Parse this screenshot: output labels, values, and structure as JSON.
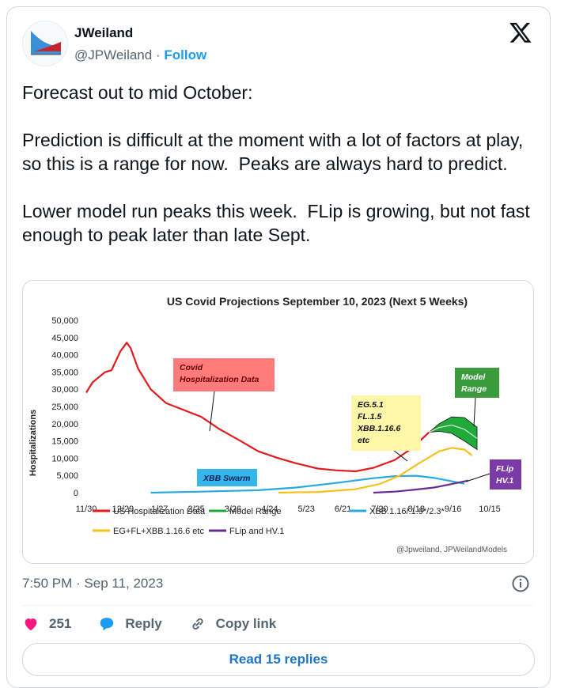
{
  "author": {
    "name": "JWeiland",
    "handle": "@JPWeiland",
    "separator": "·",
    "follow_label": "Follow"
  },
  "tweet": {
    "text": "Forecast out to mid October:\n\nPrediction is difficult at the moment with a lot of factors at play, so this is a range for now.  Peaks are always hard to predict.\n\nLower model run peaks this week.  FLip is growing, but not fast enough to peak later than late Sept."
  },
  "timestamp": "7:50 PM · Sep 11, 2023",
  "actions": {
    "likes": "251",
    "reply": "Reply",
    "copy_link": "Copy link"
  },
  "read_replies": "Read 15 replies",
  "colors": {
    "accent": "#1d9bf0",
    "like": "#f91880",
    "us": "#e41a1c",
    "model": "#1faa3a",
    "xbb": "#28a9e0",
    "eg": "#f5c21b",
    "flip": "#6a2c91"
  },
  "chart_data": {
    "type": "line",
    "title": "US Covid Projections September 10, 2023 (Next 5 Weeks)",
    "ylabel": "Hospitalizations",
    "ylim": [
      0,
      50000
    ],
    "ytick_labels": [
      "0",
      "5,000",
      "10,000",
      "15,000",
      "20,000",
      "25,000",
      "30,000",
      "35,000",
      "40,000",
      "45,000",
      "50,000"
    ],
    "xlim": [
      "2022-11-30",
      "2023-10-15"
    ],
    "xtick_labels": [
      "11/30",
      "12/29",
      "1/27",
      "2/25",
      "3/26",
      "4/24",
      "5/23",
      "6/21",
      "7/20",
      "8/18",
      "9/16",
      "10/15"
    ],
    "xtick_dates": [
      "2022-11-30",
      "2022-12-29",
      "2023-01-27",
      "2023-02-25",
      "2023-03-26",
      "2023-04-24",
      "2023-05-23",
      "2023-06-21",
      "2023-07-20",
      "2023-08-18",
      "2023-09-16",
      "2023-10-15"
    ],
    "series": [
      {
        "name": "US Hospitalization Data",
        "color": "#e41a1c",
        "x": [
          "2022-11-30",
          "2022-12-05",
          "2022-12-15",
          "2022-12-20",
          "2022-12-27",
          "2023-01-01",
          "2023-01-04",
          "2023-01-10",
          "2023-01-20",
          "2023-02-01",
          "2023-02-15",
          "2023-03-01",
          "2023-03-15",
          "2023-04-01",
          "2023-04-15",
          "2023-05-01",
          "2023-05-15",
          "2023-06-01",
          "2023-06-15",
          "2023-07-01",
          "2023-07-15",
          "2023-08-01",
          "2023-08-15",
          "2023-08-28"
        ],
        "y": [
          29000,
          32000,
          35000,
          35500,
          41000,
          43500,
          42000,
          36000,
          30000,
          26000,
          24000,
          22000,
          18500,
          15000,
          12000,
          10000,
          8500,
          7000,
          6500,
          6200,
          7200,
          9500,
          13000,
          17500
        ]
      },
      {
        "name": "Model Range",
        "color": "#1faa3a",
        "x": [
          "2023-08-28",
          "2023-09-05",
          "2023-09-15",
          "2023-09-25",
          "2023-10-05"
        ],
        "upper": [
          17500,
          20000,
          22000,
          21800,
          19000
        ],
        "lower": [
          17500,
          17800,
          17200,
          15000,
          12500
        ]
      },
      {
        "name": "XBB.1.16/.1.9*/2.3*",
        "color": "#28a9e0",
        "x": [
          "2023-01-20",
          "2023-03-01",
          "2023-04-15",
          "2023-05-15",
          "2023-06-15",
          "2023-07-15",
          "2023-08-01",
          "2023-08-18",
          "2023-09-01",
          "2023-09-15",
          "2023-09-25"
        ],
        "y": [
          0,
          300,
          700,
          1500,
          2800,
          4200,
          4800,
          4900,
          4300,
          3300,
          2600
        ]
      },
      {
        "name": "EG+FL+XBB.1.16.6 etc",
        "color": "#f5c21b",
        "x": [
          "2023-05-01",
          "2023-06-01",
          "2023-07-01",
          "2023-07-20",
          "2023-08-05",
          "2023-08-20",
          "2023-09-05",
          "2023-09-15",
          "2023-09-25",
          "2023-10-01"
        ],
        "y": [
          0,
          200,
          1000,
          2500,
          5000,
          8500,
          12000,
          13000,
          12500,
          10800
        ]
      },
      {
        "name": "FLip and HV.1",
        "color": "#6a2c91",
        "x": [
          "2023-07-15",
          "2023-08-01",
          "2023-08-15",
          "2023-09-01",
          "2023-09-15",
          "2023-09-28"
        ],
        "y": [
          0,
          300,
          800,
          1500,
          2500,
          3500
        ]
      }
    ],
    "annotations": [
      {
        "label": "Covid Hospitalization Data",
        "lines": [
          "Covid",
          "Hospitalization Data"
        ]
      },
      {
        "label": "EG.5.1 FL.1.5 XBB.1.16.6 etc",
        "lines": [
          "EG.5.1",
          "FL.1.5",
          "XBB.1.16.6",
          "etc"
        ]
      },
      {
        "label": "Model Range",
        "lines": [
          "Model",
          "Range"
        ]
      },
      {
        "label": "XBB Swarm",
        "lines": [
          "XBB Swarm"
        ]
      },
      {
        "label": "FLip HV.1",
        "lines": [
          "FLip",
          "HV.1"
        ]
      }
    ],
    "legend_position": "bottom",
    "watermark": "@Jpweiland, JPWeilandModels"
  }
}
